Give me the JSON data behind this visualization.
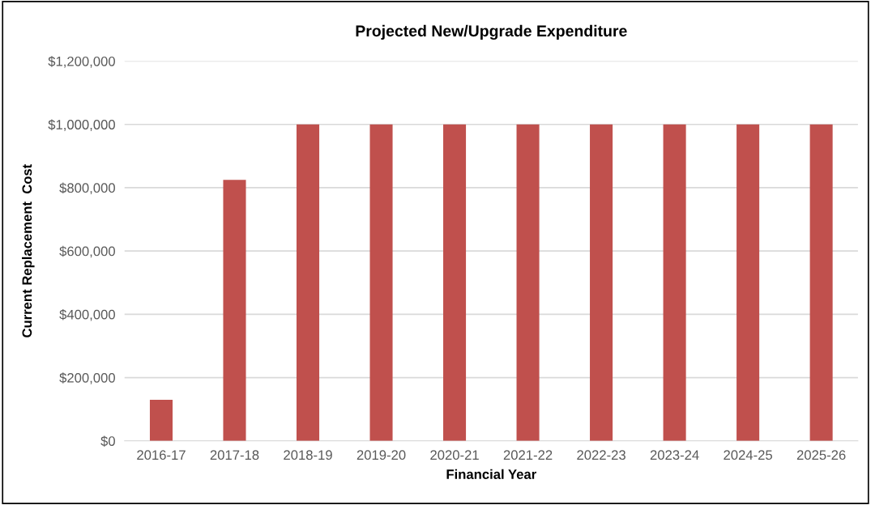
{
  "chart_data": {
    "type": "bar",
    "title": "Projected New/Upgrade Expenditure",
    "xlabel": "Financial Year",
    "ylabel": "Current Replacement  Cost",
    "categories": [
      "2016-17",
      "2017-18",
      "2018-19",
      "2019-20",
      "2020-21",
      "2021-22",
      "2022-23",
      "2023-24",
      "2024-25",
      "2025-26"
    ],
    "values": [
      130000,
      825000,
      1000000,
      1000000,
      1000000,
      1000000,
      1000000,
      1000000,
      1000000,
      1000000
    ],
    "color": "#c0504d",
    "ylim": [
      0,
      1200000
    ],
    "yticks": [
      {
        "value": 0,
        "label": "$0"
      },
      {
        "value": 200000,
        "label": "$200,000"
      },
      {
        "value": 400000,
        "label": "$400,000"
      },
      {
        "value": 600000,
        "label": "$600,000"
      },
      {
        "value": 800000,
        "label": "$800,000"
      },
      {
        "value": 1000000,
        "label": "$1,000,000"
      },
      {
        "value": 1200000,
        "label": "$1,200,000"
      }
    ],
    "grid": "y"
  }
}
